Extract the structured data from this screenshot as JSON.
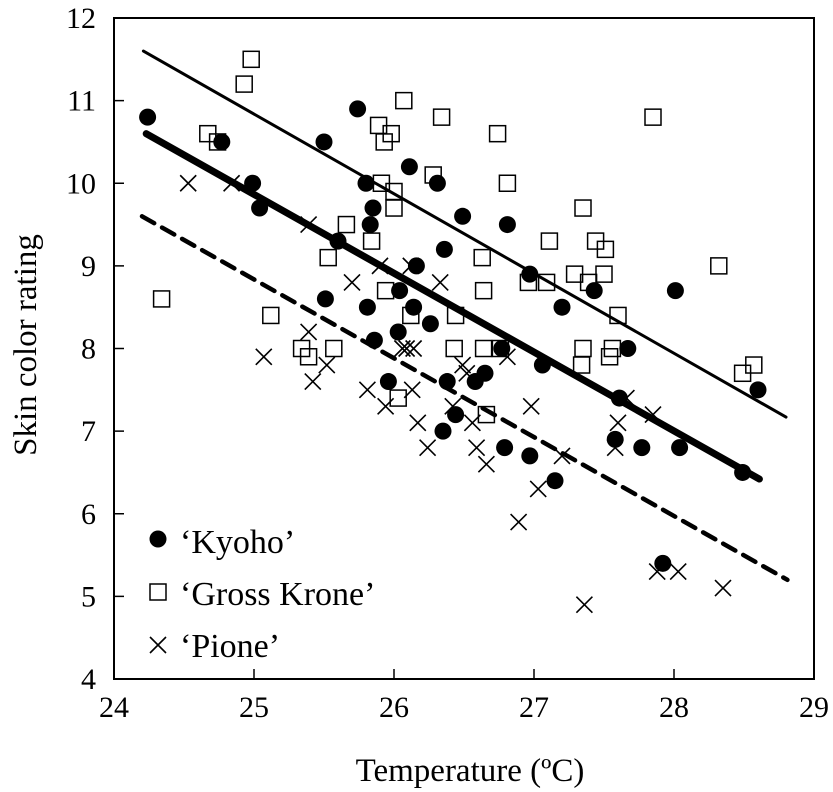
{
  "chart_data": {
    "type": "scatter",
    "title": "",
    "xlabel": "Temperature (ºC)",
    "ylabel": "Skin color rating",
    "xlim": [
      24,
      29
    ],
    "ylim": [
      4,
      12
    ],
    "xticks": [
      "24",
      "25",
      "26",
      "27",
      "28",
      "29"
    ],
    "yticks": [
      "4",
      "5",
      "6",
      "7",
      "8",
      "9",
      "10",
      "11",
      "12"
    ],
    "grid": false,
    "legend_position": "bottom-left",
    "series": [
      {
        "name": "‘Kyoho’",
        "marker": "filled-circle",
        "fit_line": {
          "style": "thick-solid",
          "from": [
            24.23,
            10.6
          ],
          "to": [
            28.61,
            6.42
          ]
        },
        "points": [
          [
            24.24,
            10.8
          ],
          [
            24.77,
            10.5
          ],
          [
            24.99,
            10.0
          ],
          [
            25.04,
            9.7
          ],
          [
            25.5,
            10.5
          ],
          [
            25.74,
            10.9
          ],
          [
            25.8,
            10.0
          ],
          [
            25.85,
            9.7
          ],
          [
            25.83,
            9.5
          ],
          [
            25.6,
            9.3
          ],
          [
            26.11,
            10.2
          ],
          [
            26.31,
            10.0
          ],
          [
            26.49,
            9.6
          ],
          [
            26.81,
            9.5
          ],
          [
            26.36,
            9.2
          ],
          [
            26.16,
            9.0
          ],
          [
            26.04,
            8.7
          ],
          [
            25.51,
            8.6
          ],
          [
            25.81,
            8.5
          ],
          [
            26.14,
            8.5
          ],
          [
            26.26,
            8.3
          ],
          [
            26.03,
            8.2
          ],
          [
            25.86,
            8.1
          ],
          [
            26.97,
            8.9
          ],
          [
            27.43,
            8.7
          ],
          [
            27.2,
            8.5
          ],
          [
            28.01,
            8.7
          ],
          [
            27.67,
            8.0
          ],
          [
            26.77,
            8.0
          ],
          [
            25.96,
            7.6
          ],
          [
            26.38,
            7.6
          ],
          [
            26.58,
            7.6
          ],
          [
            26.65,
            7.7
          ],
          [
            27.06,
            7.8
          ],
          [
            26.44,
            7.2
          ],
          [
            26.35,
            7.0
          ],
          [
            26.79,
            6.8
          ],
          [
            26.97,
            6.7
          ],
          [
            27.15,
            6.4
          ],
          [
            27.61,
            7.4
          ],
          [
            27.58,
            6.9
          ],
          [
            27.77,
            6.8
          ],
          [
            28.04,
            6.8
          ],
          [
            28.49,
            6.5
          ],
          [
            28.6,
            7.5
          ],
          [
            27.92,
            5.4
          ]
        ]
      },
      {
        "name": "‘Gross Krone’",
        "marker": "open-square",
        "fit_line": {
          "style": "thin-solid",
          "from": [
            24.21,
            11.6
          ],
          "to": [
            28.8,
            7.17
          ]
        },
        "points": [
          [
            24.98,
            11.5
          ],
          [
            24.93,
            11.2
          ],
          [
            24.67,
            10.6
          ],
          [
            24.74,
            10.5
          ],
          [
            26.07,
            11.0
          ],
          [
            26.34,
            10.8
          ],
          [
            25.89,
            10.7
          ],
          [
            25.98,
            10.6
          ],
          [
            25.93,
            10.5
          ],
          [
            26.28,
            10.1
          ],
          [
            25.91,
            10.0
          ],
          [
            26.0,
            9.9
          ],
          [
            26.0,
            9.7
          ],
          [
            25.66,
            9.5
          ],
          [
            25.84,
            9.3
          ],
          [
            25.53,
            9.1
          ],
          [
            25.94,
            8.7
          ],
          [
            26.44,
            8.4
          ],
          [
            26.12,
            8.4
          ],
          [
            24.34,
            8.6
          ],
          [
            25.12,
            8.4
          ],
          [
            25.34,
            8.0
          ],
          [
            25.39,
            7.9
          ],
          [
            25.57,
            8.0
          ],
          [
            27.85,
            10.8
          ],
          [
            26.74,
            10.6
          ],
          [
            26.81,
            10.0
          ],
          [
            27.35,
            9.7
          ],
          [
            27.11,
            9.3
          ],
          [
            27.44,
            9.3
          ],
          [
            27.51,
            9.2
          ],
          [
            26.63,
            9.1
          ],
          [
            28.32,
            9.0
          ],
          [
            26.64,
            8.7
          ],
          [
            26.96,
            8.8
          ],
          [
            27.09,
            8.8
          ],
          [
            27.29,
            8.9
          ],
          [
            27.39,
            8.8
          ],
          [
            27.5,
            8.9
          ],
          [
            27.6,
            8.4
          ],
          [
            26.43,
            8.0
          ],
          [
            26.64,
            8.0
          ],
          [
            26.76,
            8.0
          ],
          [
            27.35,
            8.0
          ],
          [
            27.56,
            8.0
          ],
          [
            27.34,
            7.8
          ],
          [
            27.54,
            7.9
          ],
          [
            28.57,
            7.8
          ],
          [
            28.49,
            7.7
          ],
          [
            26.66,
            7.2
          ],
          [
            26.03,
            7.4
          ]
        ]
      },
      {
        "name": "‘Pione’",
        "marker": "cross",
        "fit_line": {
          "style": "dashed",
          "from": [
            24.2,
            9.6
          ],
          "to": [
            28.81,
            5.2
          ]
        },
        "points": [
          [
            24.53,
            10.0
          ],
          [
            24.84,
            10.0
          ],
          [
            25.39,
            9.5
          ],
          [
            25.9,
            9.0
          ],
          [
            26.12,
            9.0
          ],
          [
            26.33,
            8.8
          ],
          [
            25.7,
            8.8
          ],
          [
            25.39,
            8.2
          ],
          [
            26.06,
            8.0
          ],
          [
            26.09,
            8.0
          ],
          [
            26.14,
            8.0
          ],
          [
            25.07,
            7.9
          ],
          [
            25.52,
            7.8
          ],
          [
            25.42,
            7.6
          ],
          [
            25.81,
            7.5
          ],
          [
            25.94,
            7.3
          ],
          [
            26.13,
            7.5
          ],
          [
            26.17,
            7.1
          ],
          [
            26.24,
            6.8
          ],
          [
            26.42,
            7.3
          ],
          [
            26.49,
            7.8
          ],
          [
            26.52,
            7.7
          ],
          [
            26.81,
            7.9
          ],
          [
            26.56,
            7.1
          ],
          [
            26.59,
            6.8
          ],
          [
            26.66,
            6.6
          ],
          [
            26.98,
            7.3
          ],
          [
            27.03,
            6.3
          ],
          [
            26.89,
            5.9
          ],
          [
            27.2,
            6.7
          ],
          [
            27.58,
            6.8
          ],
          [
            27.6,
            7.1
          ],
          [
            27.66,
            7.4
          ],
          [
            27.85,
            7.2
          ],
          [
            27.88,
            5.3
          ],
          [
            28.03,
            5.3
          ],
          [
            28.35,
            5.1
          ],
          [
            27.36,
            4.9
          ]
        ]
      }
    ]
  }
}
